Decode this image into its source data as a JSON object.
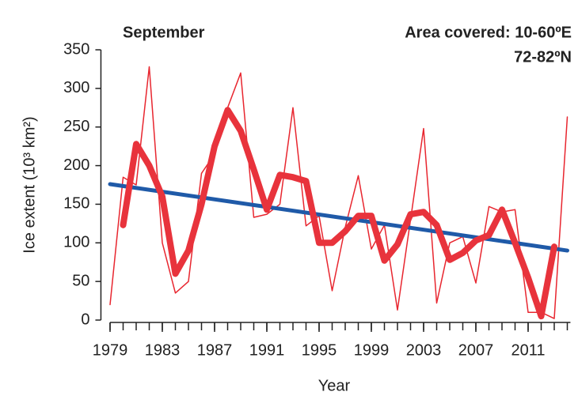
{
  "chart_data": {
    "type": "line",
    "title": "September",
    "annotations": [
      "Area covered: 10-60ºE",
      "72-82ºN"
    ],
    "xlabel": "Year",
    "ylabel": "Ice extent (10³ km²)",
    "xlim": [
      1978.3,
      2014.3
    ],
    "ylim": [
      0,
      350
    ],
    "xticks": [
      1979,
      1983,
      1987,
      1991,
      1995,
      1999,
      2003,
      2007,
      2011
    ],
    "xminorticks": [
      1979,
      1980,
      1981,
      1982,
      1983,
      1984,
      1985,
      1986,
      1987,
      1988,
      1989,
      1990,
      1991,
      1992,
      1993,
      1994,
      1995,
      1996,
      1997,
      1998,
      1999,
      2000,
      2001,
      2002,
      2003,
      2004,
      2005,
      2006,
      2007,
      2008,
      2009,
      2010,
      2011,
      2012,
      2013,
      2014
    ],
    "yticks": [
      0,
      50,
      100,
      150,
      200,
      250,
      300,
      350
    ],
    "series": [
      {
        "color": "#e8262f",
        "width": 1.5,
        "x": [
          1979,
          1980,
          1981,
          1982,
          1983,
          1984,
          1985,
          1986,
          1987,
          1988,
          1989,
          1990,
          1991,
          1992,
          1993,
          1994,
          1995,
          1996,
          1997,
          1998,
          1999,
          2000,
          2001,
          2002,
          2003,
          2004,
          2005,
          2006,
          2007,
          2008,
          2009,
          2010,
          2011,
          2012,
          2013,
          2014
        ],
        "values": [
          20,
          185,
          175,
          328,
          100,
          35,
          50,
          190,
          215,
          275,
          320,
          133,
          137,
          150,
          275,
          122,
          135,
          38,
          120,
          187,
          92,
          123,
          13,
          130,
          248,
          22,
          100,
          108,
          48,
          147,
          140,
          143,
          10,
          10,
          2,
          263
        ]
      },
      {
        "color": "#1f5aa8",
        "width": 5,
        "x": [
          1979,
          2014
        ],
        "values": [
          176,
          90
        ]
      },
      {
        "color": "#e8333c",
        "width": 8,
        "x": [
          1980,
          1981,
          1982,
          1983,
          1984,
          1985,
          1986,
          1987,
          1988,
          1989,
          1990,
          1991,
          1992,
          1993,
          1994,
          1995,
          1996,
          1997,
          1998,
          1999,
          2000,
          2001,
          2002,
          2003,
          2004,
          2005,
          2006,
          2007,
          2008,
          2009,
          2010,
          2011,
          2012,
          2013
        ],
        "values": [
          123,
          228,
          200,
          160,
          60,
          90,
          150,
          225,
          272,
          245,
          195,
          143,
          188,
          185,
          180,
          100,
          100,
          115,
          135,
          135,
          77,
          98,
          137,
          140,
          123,
          78,
          87,
          103,
          110,
          143,
          100,
          55,
          5,
          95
        ]
      }
    ]
  }
}
